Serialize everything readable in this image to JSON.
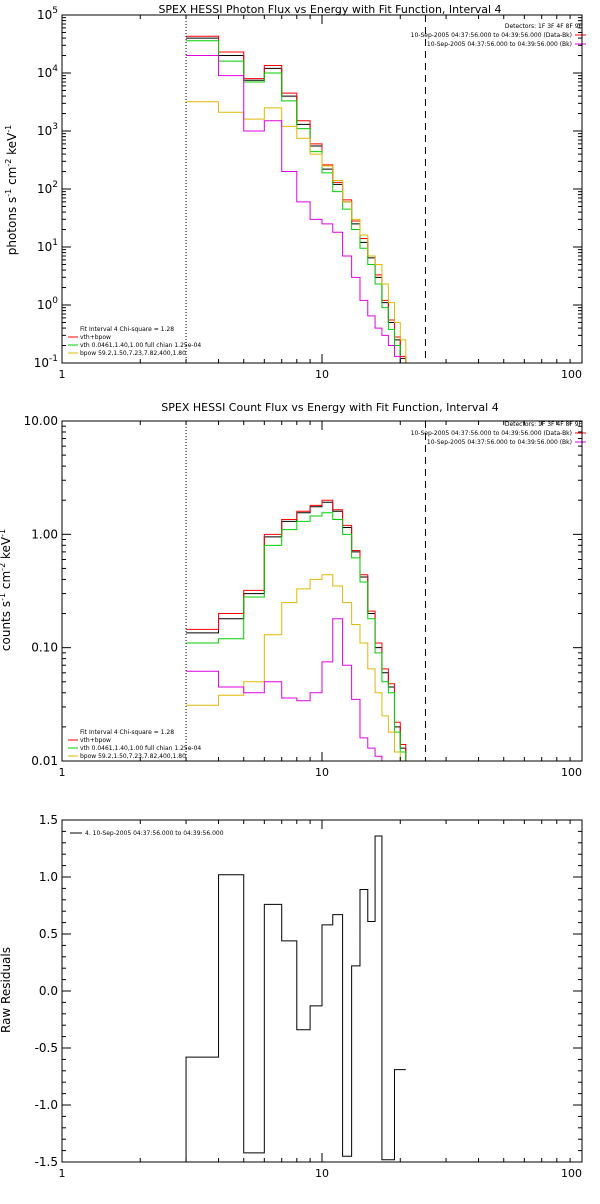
{
  "colors": {
    "total": "#000000",
    "model": "#ff0000",
    "vth": "#00d000",
    "bpow": "#e0b800",
    "bk": "#e000e0",
    "residual": "#000000"
  },
  "energy_edges": [
    3,
    4,
    5,
    6,
    7,
    8,
    9,
    10,
    11,
    12,
    13,
    14,
    15,
    16,
    17,
    18,
    19,
    20,
    21,
    22,
    23,
    25
  ],
  "chart_data": [
    {
      "type": "line",
      "id": "photon",
      "title": "SPEX HESSI Photon Flux vs Energy with Fit Function, Interval 4",
      "ylabel_parts": [
        "photons s",
        "-1",
        " cm",
        "-2",
        " keV",
        "-1"
      ],
      "xlim": [
        1,
        100
      ],
      "ylim": [
        0.1,
        100000
      ],
      "xscale": "log",
      "yscale": "log",
      "xticks": [
        {
          "v": 1,
          "l": "1"
        },
        {
          "v": 10,
          "l": "10"
        },
        {
          "v": 100,
          "l": "100"
        }
      ],
      "yticks": [
        {
          "v": 0.1,
          "b": "10",
          "e": "-1"
        },
        {
          "v": 1,
          "b": "10",
          "e": "0"
        },
        {
          "v": 10,
          "b": "10",
          "e": "1"
        },
        {
          "v": 100,
          "b": "10",
          "e": "2"
        },
        {
          "v": 1000,
          "b": "10",
          "e": "3"
        },
        {
          "v": 10000,
          "b": "10",
          "e": "4"
        },
        {
          "v": 100000,
          "b": "10",
          "e": "5"
        }
      ],
      "vlines": [
        {
          "x": 3,
          "style": "dotted"
        },
        {
          "x": 25,
          "style": "dashed"
        }
      ],
      "detectors_label": "Detectors: 1F 3F 4F 8F 9F",
      "time_lines": [
        "10-Sep-2005 04:37:56.000 to 04:39:56.000 (Data-Bk)",
        "10-Sep-2005 04:37:56.000 to 04:39:56.000 (Bk)"
      ],
      "fit_lines": [
        "Fit Interval  4    Chi-square = 1.28",
        "vth+bpow",
        "vth 0.0461,1.40,1.00  full chian 1.25e-04",
        "bpow  59.2,1.50,7.23,7.82,400,1.80"
      ],
      "series": [
        {
          "key": "total",
          "values": [
            40000,
            20000,
            7500,
            12000,
            4000,
            1300,
            550,
            220,
            120,
            60,
            25,
            12,
            6.5,
            3,
            1.1,
            0.5,
            0.25,
            0.12
          ]
        },
        {
          "key": "model",
          "values": [
            43000,
            23000,
            8000,
            13500,
            4500,
            1500,
            600,
            260,
            130,
            65,
            28,
            14,
            7,
            3.3,
            1.2,
            0.55,
            0.28,
            0.13
          ]
        },
        {
          "key": "vth",
          "values": [
            36000,
            16000,
            7000,
            10000,
            3300,
            1100,
            440,
            190,
            90,
            45,
            20,
            9.5,
            5,
            2.3,
            0.9,
            0.38,
            0.2,
            0.1
          ]
        },
        {
          "key": "bpow",
          "values": [
            3200,
            2100,
            1600,
            2500,
            1200,
            750,
            400,
            250,
            140,
            60,
            30,
            16,
            7,
            5,
            2.3,
            1.1,
            0.5,
            0.25
          ]
        },
        {
          "key": "bk",
          "values": [
            20000,
            9000,
            1000,
            1500,
            200,
            60,
            30,
            25,
            18,
            7,
            3,
            1.2,
            0.65,
            0.4,
            0.3,
            0.2,
            0.13,
            0.1
          ]
        }
      ]
    },
    {
      "type": "line",
      "id": "count",
      "title": "SPEX HESSI Count Flux vs Energy with Fit Function, Interval 4",
      "ylabel_parts": [
        "counts s",
        "-1",
        " cm",
        "-2",
        " keV",
        "-1"
      ],
      "xlim": [
        1,
        100
      ],
      "ylim": [
        0.01,
        10
      ],
      "xscale": "log",
      "yscale": "log",
      "xticks": [
        {
          "v": 1,
          "l": "1"
        },
        {
          "v": 10,
          "l": "10"
        },
        {
          "v": 100,
          "l": "100"
        }
      ],
      "yticks": [
        {
          "v": 0.01,
          "l": "0.01"
        },
        {
          "v": 0.1,
          "l": "0.10"
        },
        {
          "v": 1,
          "l": "1.00"
        },
        {
          "v": 10,
          "l": "10.00"
        }
      ],
      "vlines": [
        {
          "x": 3,
          "style": "dotted"
        },
        {
          "x": 25,
          "style": "dashed"
        }
      ],
      "detectors_label": "Detectors: 1F 3F 4F 8F 9F",
      "time_lines": [
        "10-Sep-2005 04:37:56.000 to 04:39:56.000 (Data-Bk)",
        "10-Sep-2005 04:37:56.000 to 04:39:56.000 (Bk)"
      ],
      "fit_lines": [
        "Fit Interval  4    Chi-square = 1.28",
        "vth+bpow",
        "vth 0.0461,1.40,1.00  full chian 1.25e-04",
        "bpow  59.2,1.50,7.23,7.82,400,1.80"
      ],
      "series": [
        {
          "key": "total",
          "values": [
            0.135,
            0.18,
            0.3,
            0.95,
            1.3,
            1.55,
            1.75,
            1.92,
            1.6,
            1.15,
            0.7,
            0.42,
            0.2,
            0.1,
            0.06,
            0.045,
            0.02,
            0.013
          ]
        },
        {
          "key": "model",
          "values": [
            0.145,
            0.2,
            0.32,
            1.0,
            1.35,
            1.6,
            1.8,
            2.0,
            1.65,
            1.2,
            0.72,
            0.44,
            0.21,
            0.11,
            0.065,
            0.048,
            0.022,
            0.014
          ]
        },
        {
          "key": "vth",
          "values": [
            0.11,
            0.12,
            0.28,
            0.8,
            1.1,
            1.3,
            1.45,
            1.55,
            1.35,
            1.0,
            0.62,
            0.38,
            0.18,
            0.09,
            0.05,
            0.04,
            0.018,
            0.012
          ]
        },
        {
          "key": "bpow",
          "values": [
            0.031,
            0.038,
            0.05,
            0.13,
            0.25,
            0.33,
            0.4,
            0.44,
            0.35,
            0.25,
            0.16,
            0.11,
            0.065,
            0.04,
            0.025,
            0.018,
            0.012,
            0.01
          ]
        },
        {
          "key": "bk",
          "values": [
            0.062,
            0.045,
            0.04,
            0.05,
            0.036,
            0.034,
            0.04,
            0.075,
            0.18,
            0.07,
            0.035,
            0.016,
            0.013,
            0.011,
            0.01,
            0.01,
            0.009,
            0.009
          ]
        }
      ]
    },
    {
      "type": "line",
      "id": "resid",
      "title": "",
      "ylabel": "Raw Residuals",
      "xlim": [
        1,
        100
      ],
      "ylim": [
        -1.5,
        1.5
      ],
      "xscale": "log",
      "yscale": "linear",
      "xticks": [
        {
          "v": 1,
          "l": "1"
        },
        {
          "v": 10,
          "l": "10"
        },
        {
          "v": 100,
          "l": "100"
        }
      ],
      "yticks": [
        {
          "v": -1.5,
          "l": "-1.5"
        },
        {
          "v": -1.0,
          "l": "-1.0"
        },
        {
          "v": -0.5,
          "l": "-0.5"
        },
        {
          "v": 0.0,
          "l": "0.0"
        },
        {
          "v": 0.5,
          "l": "0.5"
        },
        {
          "v": 1.0,
          "l": "1.0"
        },
        {
          "v": 1.5,
          "l": "1.5"
        }
      ],
      "legend": "4. 10-Sep-2005 04:37:56.000 to 04:39:56.000",
      "series": [
        {
          "key": "residual",
          "values": [
            -0.58,
            1.02,
            -1.42,
            0.76,
            0.44,
            -0.34,
            -0.13,
            0.58,
            0.67,
            -1.45,
            0.22,
            0.89,
            0.61,
            1.36,
            -1.48,
            -0.69
          ]
        }
      ],
      "residual_edges": [
        3,
        4,
        5,
        6,
        7,
        8,
        9,
        10,
        11,
        12,
        13,
        14,
        15,
        16,
        17,
        19,
        21
      ]
    }
  ]
}
